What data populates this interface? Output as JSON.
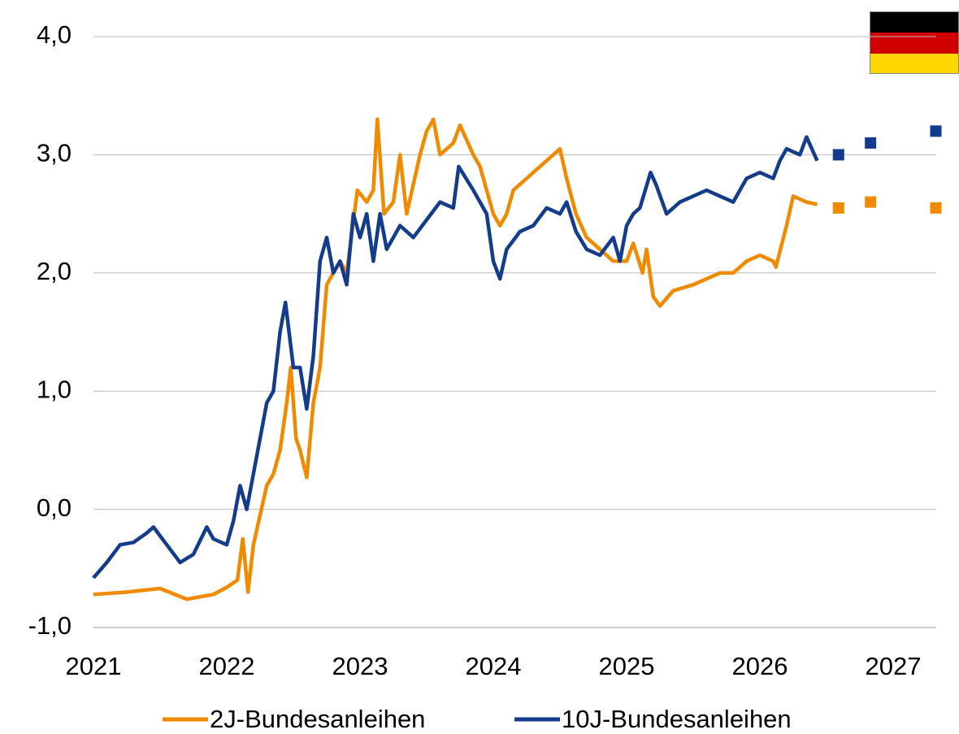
{
  "chart_data": {
    "type": "line",
    "xlim": [
      2021,
      2027.35
    ],
    "xticks": [
      2021,
      2022,
      2023,
      2024,
      2025,
      2026,
      2027
    ],
    "ylim": [
      -1,
      4
    ],
    "yticks": [
      {
        "value": -1,
        "label": "-1,0"
      },
      {
        "value": 0,
        "label": "0,0"
      },
      {
        "value": 1,
        "label": "1,0"
      },
      {
        "value": 2,
        "label": "2,0"
      },
      {
        "value": 3,
        "label": "3,0"
      },
      {
        "value": 4,
        "label": "4,0"
      }
    ],
    "grid": true,
    "legend": "bottom",
    "series": [
      {
        "name": "2J-Bundesanleihen",
        "color": "#f08a00",
        "x": [
          2021.0,
          2021.25,
          2021.5,
          2021.7,
          2021.9,
          2022.0,
          2022.08,
          2022.12,
          2022.16,
          2022.2,
          2022.3,
          2022.35,
          2022.4,
          2022.45,
          2022.48,
          2022.52,
          2022.55,
          2022.6,
          2022.65,
          2022.7,
          2022.75,
          2022.8,
          2022.85,
          2022.9,
          2022.98,
          2023.05,
          2023.1,
          2023.13,
          2023.18,
          2023.25,
          2023.3,
          2023.35,
          2023.45,
          2023.5,
          2023.55,
          2023.6,
          2023.7,
          2023.75,
          2023.85,
          2023.9,
          2024.0,
          2024.05,
          2024.1,
          2024.15,
          2024.25,
          2024.35,
          2024.45,
          2024.5,
          2024.55,
          2024.62,
          2024.7,
          2024.8,
          2024.9,
          2025.0,
          2025.05,
          2025.12,
          2025.15,
          2025.2,
          2025.25,
          2025.35,
          2025.5,
          2025.6,
          2025.7,
          2025.8,
          2025.9,
          2026.0,
          2026.1,
          2026.12,
          2026.2,
          2026.25,
          2026.35,
          2026.43
        ],
        "values": [
          -0.72,
          -0.7,
          -0.67,
          -0.76,
          -0.72,
          -0.66,
          -0.6,
          -0.25,
          -0.7,
          -0.3,
          0.2,
          0.3,
          0.5,
          0.9,
          1.2,
          0.6,
          0.5,
          0.27,
          0.9,
          1.2,
          1.9,
          2.0,
          2.1,
          2.0,
          2.7,
          2.6,
          2.7,
          3.3,
          2.5,
          2.6,
          3.0,
          2.5,
          3.0,
          3.2,
          3.3,
          3.0,
          3.1,
          3.25,
          3.0,
          2.9,
          2.5,
          2.4,
          2.5,
          2.7,
          2.8,
          2.9,
          3.0,
          3.05,
          2.8,
          2.5,
          2.3,
          2.2,
          2.1,
          2.1,
          2.25,
          2.0,
          2.2,
          1.8,
          1.72,
          1.85,
          1.9,
          1.95,
          2.0,
          2.0,
          2.1,
          2.15,
          2.1,
          2.05,
          2.4,
          2.65,
          2.6,
          2.58
        ],
        "forecast_x": [
          2026.59,
          2026.83,
          2027.32
        ],
        "forecast_values": [
          2.55,
          2.6,
          2.55
        ]
      },
      {
        "name": "10J-Bundesanleihen",
        "color": "#143c8c",
        "x": [
          2021.0,
          2021.1,
          2021.2,
          2021.3,
          2021.4,
          2021.45,
          2021.55,
          2021.65,
          2021.75,
          2021.85,
          2021.9,
          2022.0,
          2022.05,
          2022.1,
          2022.15,
          2022.2,
          2022.25,
          2022.3,
          2022.35,
          2022.4,
          2022.44,
          2022.5,
          2022.55,
          2022.6,
          2022.65,
          2022.7,
          2022.75,
          2022.8,
          2022.85,
          2022.9,
          2022.95,
          2023.0,
          2023.05,
          2023.1,
          2023.15,
          2023.2,
          2023.3,
          2023.4,
          2023.5,
          2023.6,
          2023.7,
          2023.74,
          2023.85,
          2023.95,
          2024.0,
          2024.05,
          2024.1,
          2024.2,
          2024.3,
          2024.4,
          2024.5,
          2024.55,
          2024.62,
          2024.7,
          2024.8,
          2024.9,
          2024.95,
          2025.0,
          2025.05,
          2025.1,
          2025.18,
          2025.22,
          2025.3,
          2025.4,
          2025.5,
          2025.6,
          2025.7,
          2025.8,
          2025.9,
          2026.0,
          2026.1,
          2026.15,
          2026.2,
          2026.3,
          2026.35,
          2026.43
        ],
        "values": [
          -0.58,
          -0.45,
          -0.3,
          -0.28,
          -0.2,
          -0.15,
          -0.3,
          -0.45,
          -0.38,
          -0.15,
          -0.25,
          -0.3,
          -0.1,
          0.2,
          0.0,
          0.3,
          0.6,
          0.9,
          1.0,
          1.5,
          1.75,
          1.2,
          1.2,
          0.85,
          1.3,
          2.1,
          2.3,
          2.0,
          2.1,
          1.9,
          2.5,
          2.3,
          2.5,
          2.1,
          2.5,
          2.2,
          2.4,
          2.3,
          2.45,
          2.6,
          2.55,
          2.9,
          2.7,
          2.5,
          2.1,
          1.95,
          2.2,
          2.35,
          2.4,
          2.55,
          2.5,
          2.6,
          2.35,
          2.2,
          2.15,
          2.3,
          2.1,
          2.4,
          2.5,
          2.55,
          2.85,
          2.75,
          2.5,
          2.6,
          2.65,
          2.7,
          2.65,
          2.6,
          2.8,
          2.85,
          2.8,
          2.95,
          3.05,
          3.0,
          3.15,
          2.95
        ],
        "forecast_x": [
          2026.59,
          2026.83,
          2027.32
        ],
        "forecast_values": [
          3.0,
          3.1,
          3.2
        ]
      }
    ]
  }
}
